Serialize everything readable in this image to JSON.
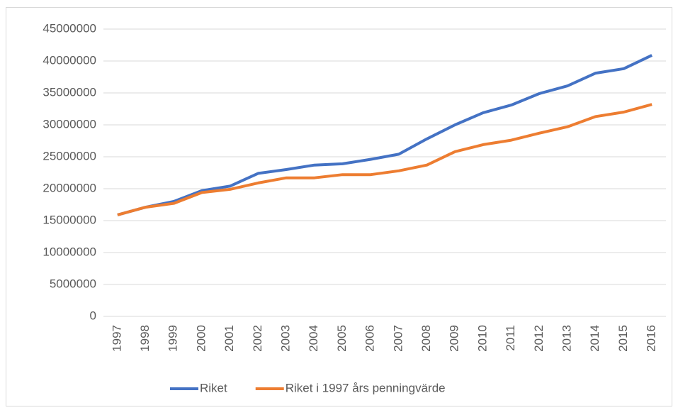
{
  "chart_data": {
    "type": "line",
    "categories": [
      "1997",
      "1998",
      "1999",
      "2000",
      "2001",
      "2002",
      "2003",
      "2004",
      "2005",
      "2006",
      "2007",
      "2008",
      "2009",
      "2010",
      "2011",
      "2012",
      "2013",
      "2014",
      "2015",
      "2016"
    ],
    "series": [
      {
        "name": "Riket",
        "color": "#4472c4",
        "values": [
          15900000,
          17100000,
          18000000,
          19700000,
          20400000,
          22400000,
          23000000,
          23700000,
          23900000,
          24600000,
          25400000,
          27800000,
          30000000,
          31900000,
          33100000,
          34900000,
          36100000,
          38100000,
          38800000,
          40900000
        ]
      },
      {
        "name": "Riket i 1997 års penningvärde",
        "color": "#ed7d31",
        "values": [
          15900000,
          17100000,
          17700000,
          19400000,
          19900000,
          20900000,
          21700000,
          21700000,
          22200000,
          22200000,
          22800000,
          23700000,
          25800000,
          26900000,
          27600000,
          28700000,
          29700000,
          31300000,
          32000000,
          33200000
        ]
      }
    ],
    "ylim": [
      0,
      45000000
    ],
    "yticks": [
      0,
      5000000,
      10000000,
      15000000,
      20000000,
      25000000,
      30000000,
      35000000,
      40000000,
      45000000
    ],
    "grid": true,
    "legend": "bottom"
  }
}
